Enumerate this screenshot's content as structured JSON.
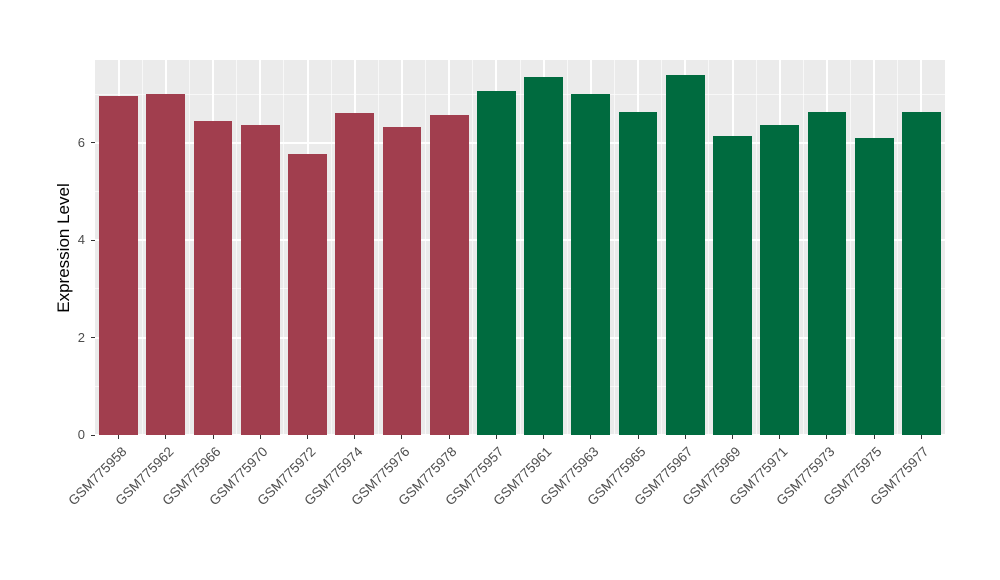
{
  "figure": {
    "background": "#FFFFFF",
    "panel_background": "#EBEBEB",
    "grid_color": "#FFFFFF",
    "axis_text_color": "#4D4D4D",
    "axis_title_color": "#000000",
    "tick_color": "#333333"
  },
  "chart_data": {
    "type": "bar",
    "title": "",
    "xlabel": "",
    "ylabel": "Expression Level",
    "ylim": [
      0,
      7.7
    ],
    "yticks": [
      0,
      2,
      4,
      6
    ],
    "yticks_minor": [
      1,
      3,
      5,
      7
    ],
    "grid": "on",
    "legend": "none",
    "bar_color_group1": "#A13E4E",
    "bar_color_group2": "#006B3F",
    "categories": [
      "GSM775958",
      "GSM775962",
      "GSM775966",
      "GSM775970",
      "GSM775972",
      "GSM775974",
      "GSM775976",
      "GSM775978",
      "GSM775957",
      "GSM775961",
      "GSM775963",
      "GSM775965",
      "GSM775967",
      "GSM775969",
      "GSM775971",
      "GSM775973",
      "GSM775975",
      "GSM775977"
    ],
    "values": [
      6.97,
      7.0,
      6.45,
      6.37,
      5.77,
      6.62,
      6.33,
      6.58,
      7.07,
      7.36,
      7.01,
      6.64,
      7.4,
      6.14,
      6.37,
      6.64,
      6.1,
      6.64
    ],
    "bar_groups": [
      "group1",
      "group1",
      "group1",
      "group1",
      "group1",
      "group1",
      "group1",
      "group1",
      "group2",
      "group2",
      "group2",
      "group2",
      "group2",
      "group2",
      "group2",
      "group2",
      "group2",
      "group2"
    ]
  }
}
